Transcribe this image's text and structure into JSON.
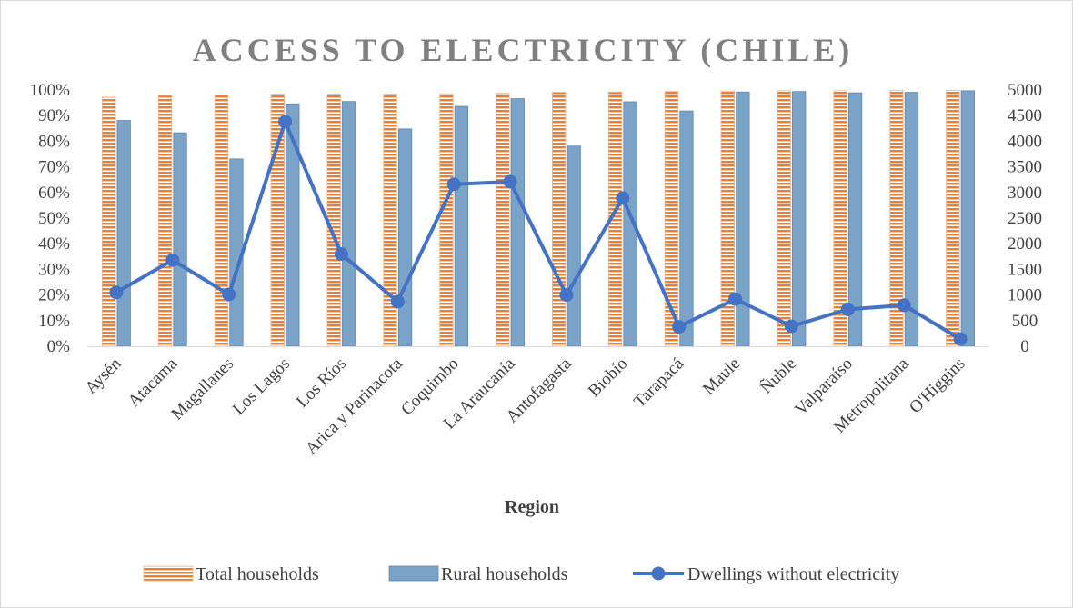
{
  "chart_data": {
    "type": "bar",
    "title": "ACCESS TO ELECTRICITY (CHILE)",
    "xlabel": "Region",
    "ylabel": "",
    "y2label": "",
    "ylim": [
      0,
      100
    ],
    "y2lim": [
      0,
      5000
    ],
    "yticks": [
      "0%",
      "10%",
      "20%",
      "30%",
      "40%",
      "50%",
      "60%",
      "70%",
      "80%",
      "90%",
      "100%"
    ],
    "y2ticks": [
      "0",
      "500",
      "1000",
      "1500",
      "2000",
      "2500",
      "3000",
      "3500",
      "4000",
      "4500",
      "5000"
    ],
    "grid": false,
    "legend_position": "bottom",
    "categories": [
      "Aysén",
      "Atacama",
      "Magallanes",
      "Los Lagos",
      "Los Ríos",
      "Arica y Parinacota",
      "Coquimbo",
      "La Araucanía",
      "Antofagasta",
      "Biobío",
      "Tarapacá",
      "Maule",
      "Ñuble",
      "Valparaíso",
      "Metropolitana",
      "O'Higgins"
    ],
    "series": [
      {
        "name": "Total households",
        "kind": "bar",
        "axis": "left",
        "color": "#ED7D31",
        "values": [
          97.2,
          97.9,
          98.0,
          98.4,
          98.4,
          98.4,
          98.5,
          98.7,
          99.1,
          99.2,
          99.4,
          99.6,
          99.7,
          99.7,
          99.8,
          99.8
        ]
      },
      {
        "name": "Rural households",
        "kind": "bar",
        "axis": "left",
        "color": "#7BA3C8",
        "values": [
          88.1,
          83.3,
          73.1,
          94.6,
          95.5,
          84.8,
          93.6,
          96.6,
          78.1,
          95.4,
          91.8,
          99.2,
          99.4,
          98.9,
          99.1,
          99.7
        ]
      },
      {
        "name": "Dwellings without electricity",
        "kind": "line",
        "axis": "right",
        "color": "#4472C4",
        "values": [
          1050,
          1680,
          1010,
          4380,
          1800,
          870,
          3160,
          3210,
          1000,
          2890,
          380,
          920,
          390,
          720,
          800,
          140
        ]
      }
    ]
  }
}
